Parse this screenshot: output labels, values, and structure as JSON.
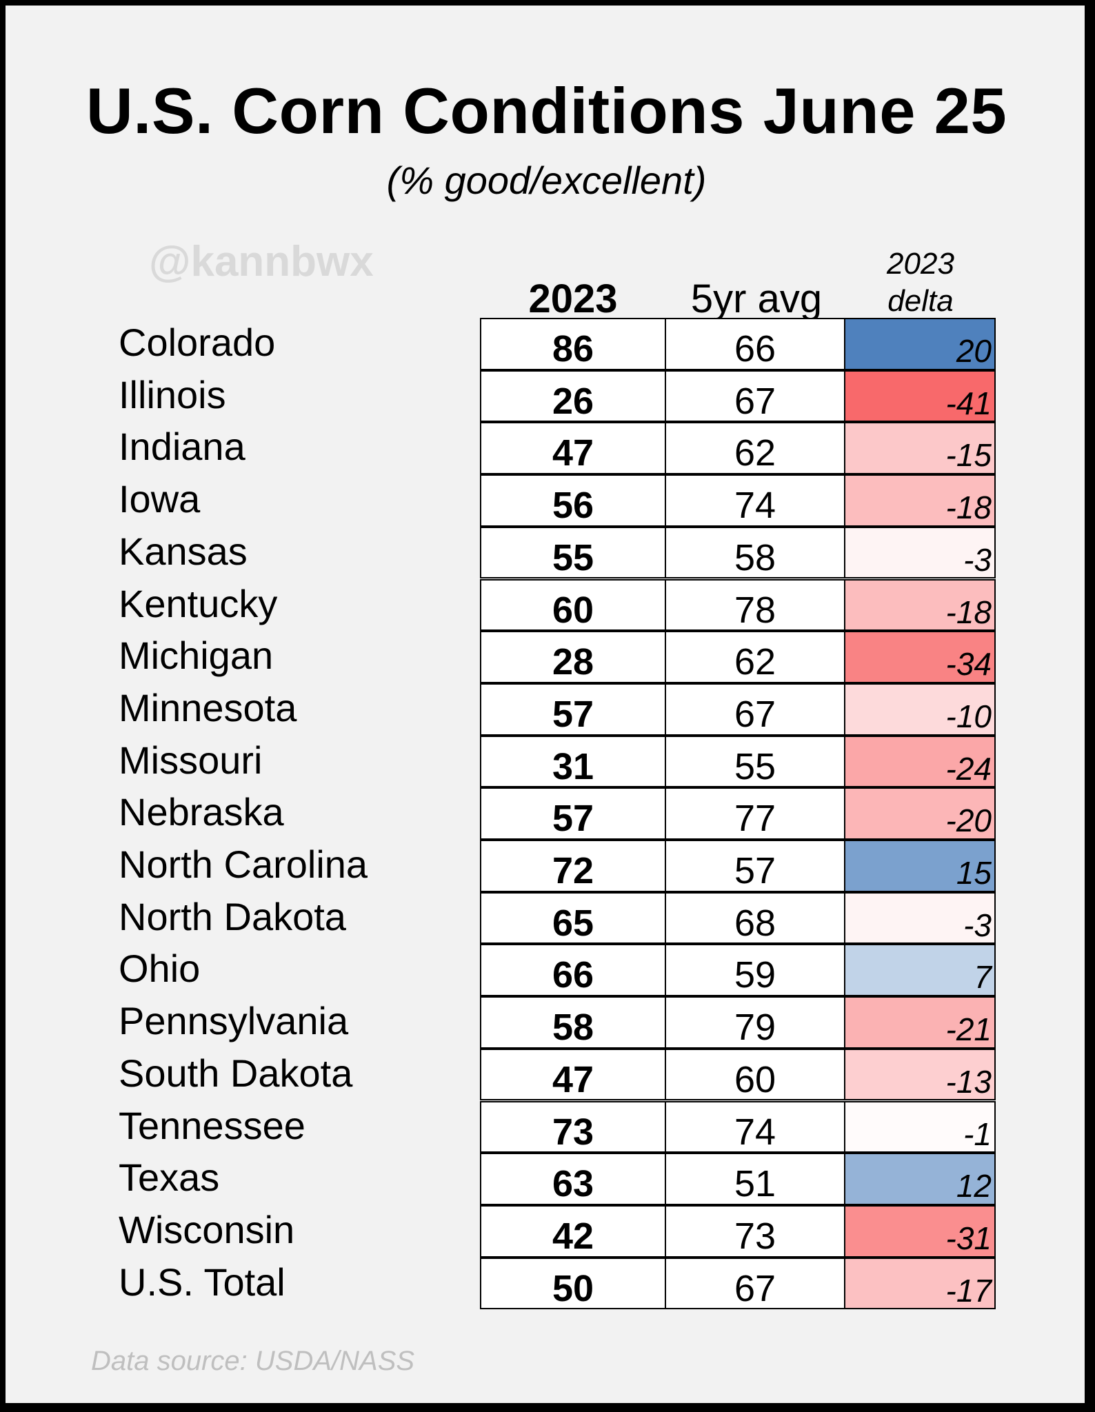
{
  "chart_data": {
    "type": "table",
    "title": "U.S. Corn Conditions June 25",
    "subtitle": "(% good/excellent)",
    "columns": [
      "2023",
      "5yr avg",
      "2023 delta"
    ],
    "delta_header_lines": [
      "2023",
      "delta"
    ],
    "color_scale": {
      "positive": "#4f81bd",
      "negative": "#f8696b",
      "neutral": "#ffffff",
      "max_positive": 20,
      "max_negative": -41
    },
    "rows": [
      {
        "state": "Colorado",
        "y2023": 86,
        "avg5yr": 66,
        "delta": 20
      },
      {
        "state": "Illinois",
        "y2023": 26,
        "avg5yr": 67,
        "delta": -41
      },
      {
        "state": "Indiana",
        "y2023": 47,
        "avg5yr": 62,
        "delta": -15
      },
      {
        "state": "Iowa",
        "y2023": 56,
        "avg5yr": 74,
        "delta": -18
      },
      {
        "state": "Kansas",
        "y2023": 55,
        "avg5yr": 58,
        "delta": -3
      },
      {
        "state": "Kentucky",
        "y2023": 60,
        "avg5yr": 78,
        "delta": -18
      },
      {
        "state": "Michigan",
        "y2023": 28,
        "avg5yr": 62,
        "delta": -34
      },
      {
        "state": "Minnesota",
        "y2023": 57,
        "avg5yr": 67,
        "delta": -10
      },
      {
        "state": "Missouri",
        "y2023": 31,
        "avg5yr": 55,
        "delta": -24
      },
      {
        "state": "Nebraska",
        "y2023": 57,
        "avg5yr": 77,
        "delta": -20
      },
      {
        "state": "North Carolina",
        "y2023": 72,
        "avg5yr": 57,
        "delta": 15
      },
      {
        "state": "North Dakota",
        "y2023": 65,
        "avg5yr": 68,
        "delta": -3
      },
      {
        "state": "Ohio",
        "y2023": 66,
        "avg5yr": 59,
        "delta": 7
      },
      {
        "state": "Pennsylvania",
        "y2023": 58,
        "avg5yr": 79,
        "delta": -21
      },
      {
        "state": "South Dakota",
        "y2023": 47,
        "avg5yr": 60,
        "delta": -13
      },
      {
        "state": "Tennessee",
        "y2023": 73,
        "avg5yr": 74,
        "delta": -1
      },
      {
        "state": "Texas",
        "y2023": 63,
        "avg5yr": 51,
        "delta": 12
      },
      {
        "state": "Wisconsin",
        "y2023": 42,
        "avg5yr": 73,
        "delta": -31
      },
      {
        "state": "U.S. Total",
        "y2023": 50,
        "avg5yr": 67,
        "delta": -17
      }
    ]
  },
  "watermark": "@kannbwx",
  "source": "Data source: USDA/NASS"
}
